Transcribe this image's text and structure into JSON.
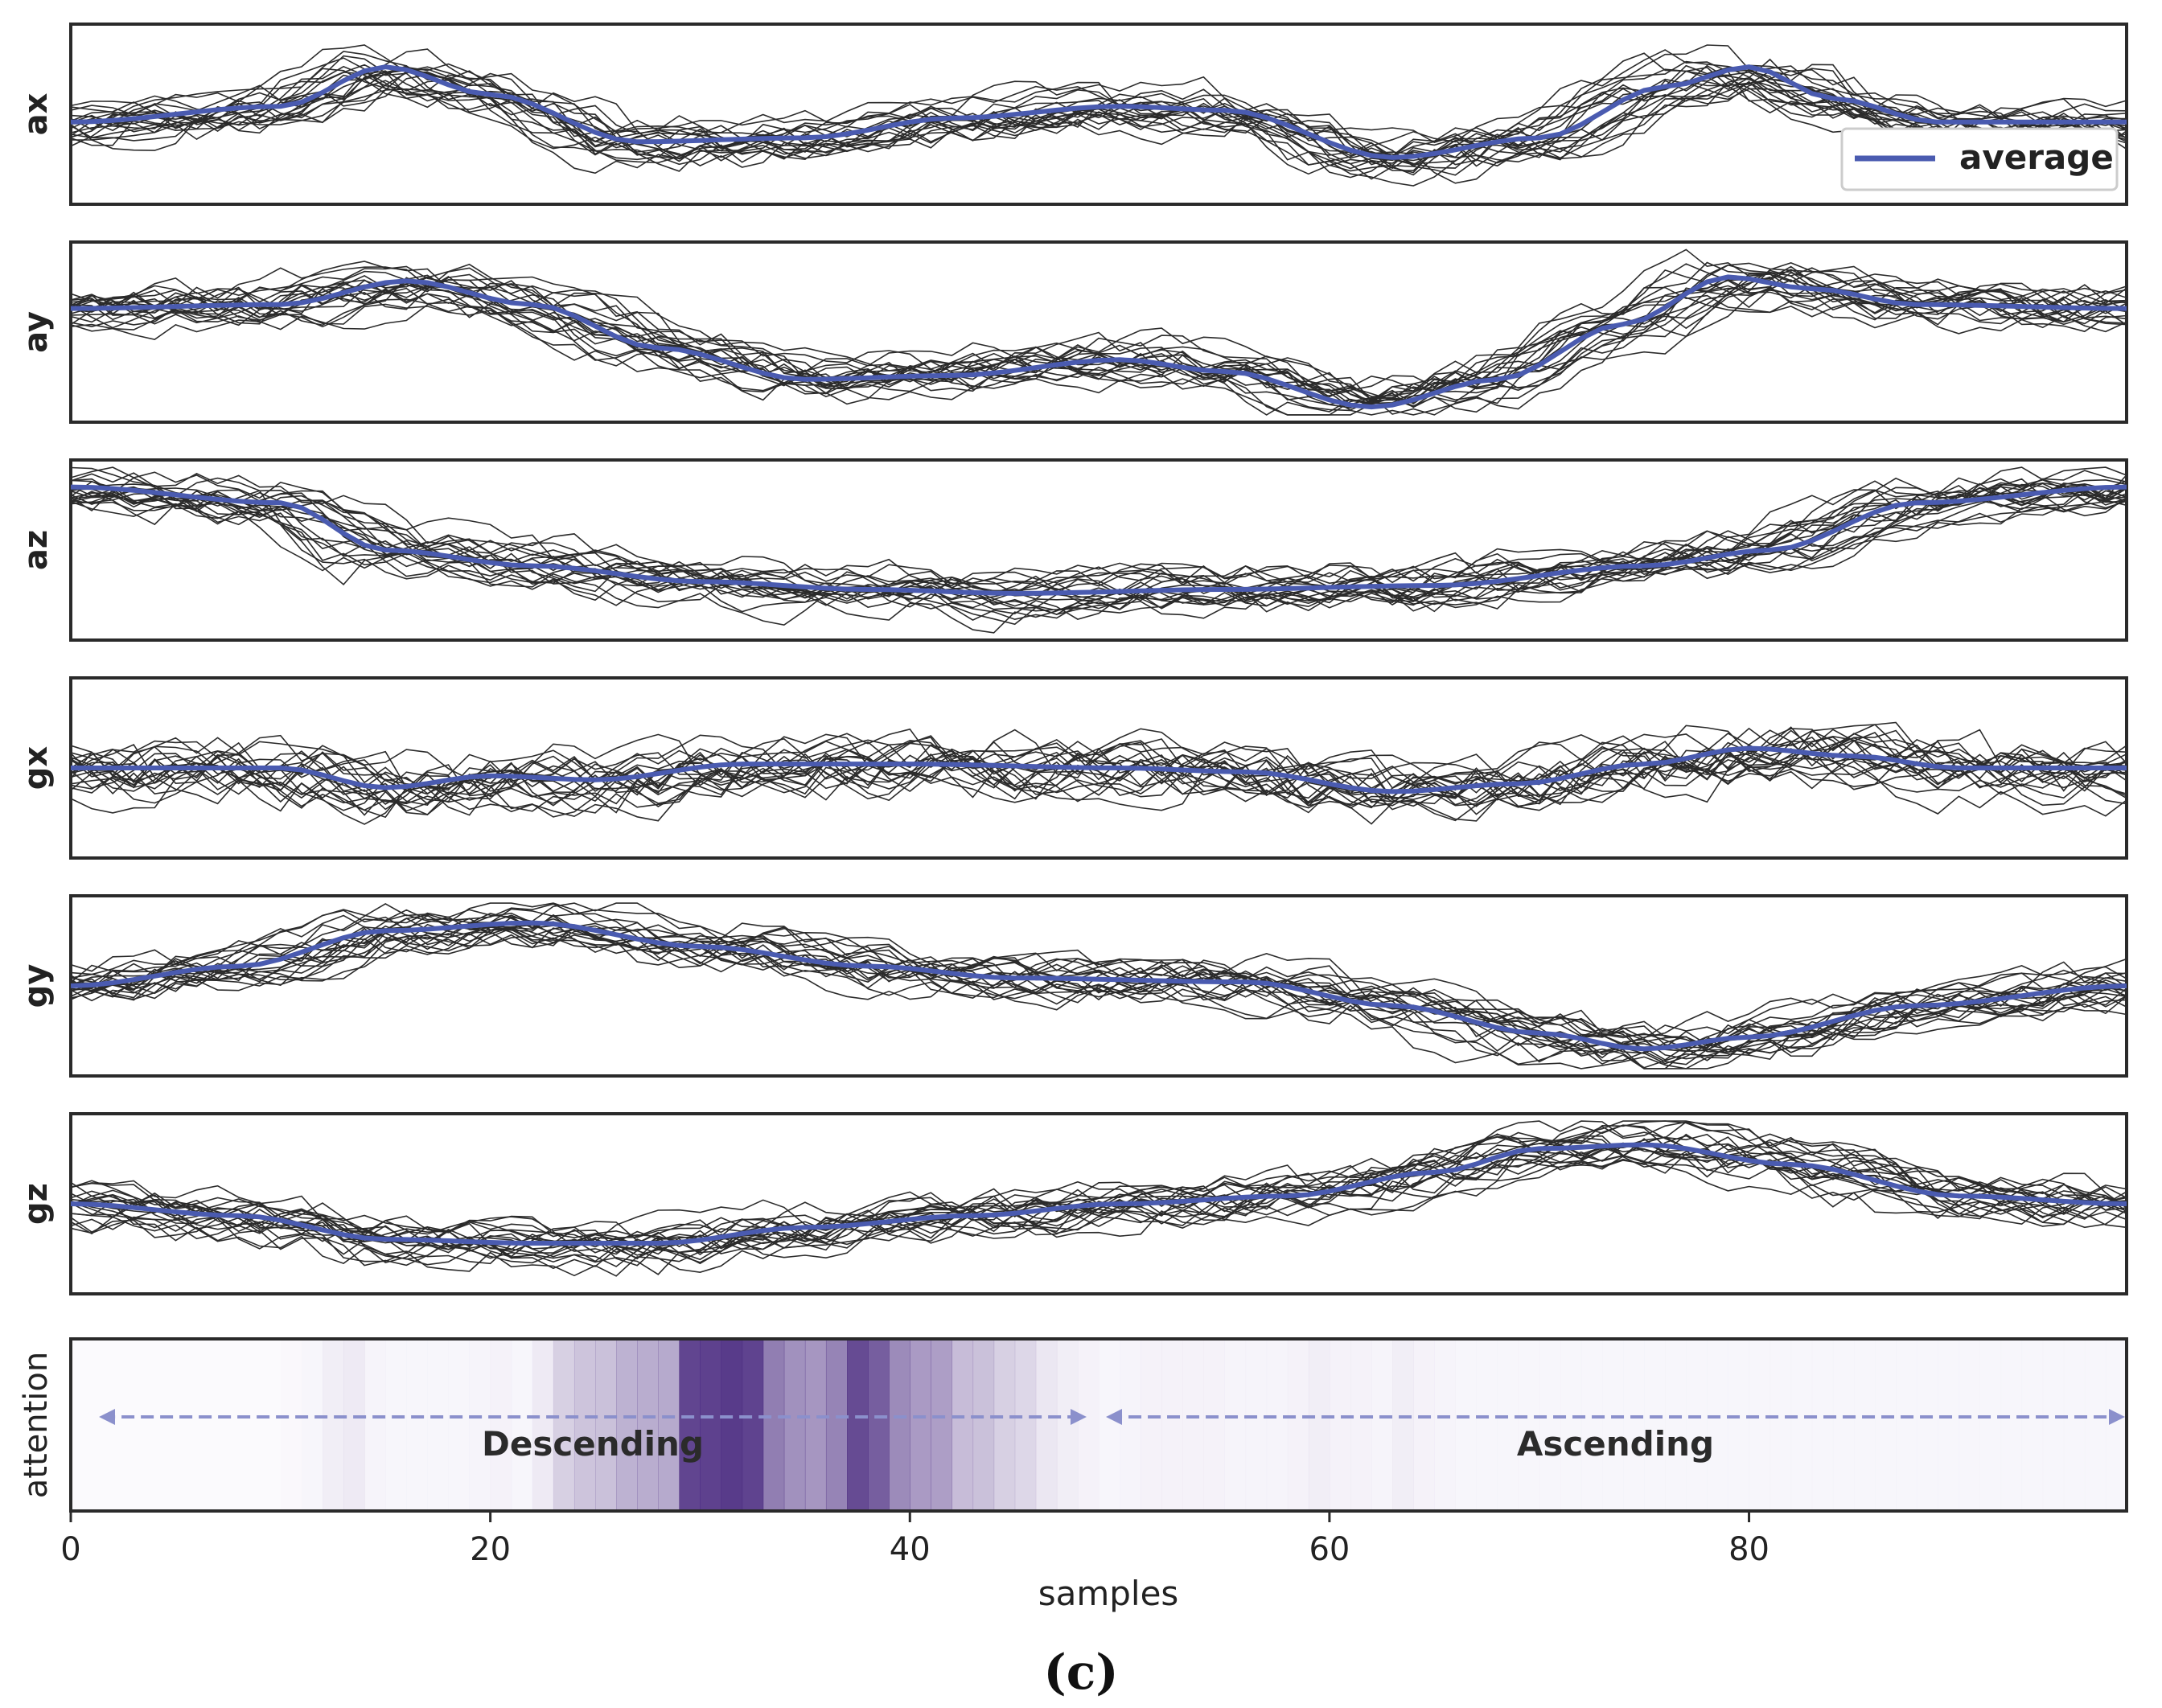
{
  "figure": {
    "caption": "(c)"
  },
  "chart_data": {
    "type": "line",
    "x_label": "samples",
    "x_range": [
      0,
      98
    ],
    "x_ticks": [
      0,
      20,
      40,
      60,
      80
    ],
    "y_range": [
      -1.0,
      1.0
    ],
    "legend": {
      "label": "average",
      "placement": "bottom-right of top panel",
      "color": "#4a5bb0"
    },
    "colors": {
      "traces": "#2b2b2b",
      "average": "#4a5bb0",
      "attention": "#4a2a80",
      "arrow": "#8b90cc"
    },
    "n_samples": 99,
    "n_traces": 20,
    "panels": [
      {
        "ylabel": "ax",
        "average_keypoints": [
          [
            0,
            -0.1
          ],
          [
            10,
            0.1
          ],
          [
            15,
            0.6
          ],
          [
            20,
            0.25
          ],
          [
            27,
            -0.35
          ],
          [
            35,
            -0.3
          ],
          [
            42,
            -0.05
          ],
          [
            50,
            0.1
          ],
          [
            55,
            0.05
          ],
          [
            63,
            -0.55
          ],
          [
            70,
            -0.3
          ],
          [
            76,
            0.35
          ],
          [
            80,
            0.6
          ],
          [
            84,
            0.2
          ],
          [
            89,
            -0.1
          ],
          [
            98,
            -0.1
          ]
        ]
      },
      {
        "ylabel": "ay",
        "average_keypoints": [
          [
            0,
            0.3
          ],
          [
            10,
            0.35
          ],
          [
            16,
            0.65
          ],
          [
            22,
            0.35
          ],
          [
            28,
            -0.2
          ],
          [
            35,
            -0.6
          ],
          [
            42,
            -0.55
          ],
          [
            50,
            -0.35
          ],
          [
            55,
            -0.5
          ],
          [
            62,
            -0.95
          ],
          [
            68,
            -0.6
          ],
          [
            74,
            0.1
          ],
          [
            79,
            0.7
          ],
          [
            83,
            0.55
          ],
          [
            88,
            0.35
          ],
          [
            98,
            0.3
          ]
        ]
      },
      {
        "ylabel": "az",
        "average_keypoints": [
          [
            0,
            0.8
          ],
          [
            10,
            0.6
          ],
          [
            15,
            0.0
          ],
          [
            22,
            -0.2
          ],
          [
            30,
            -0.4
          ],
          [
            38,
            -0.5
          ],
          [
            45,
            -0.55
          ],
          [
            55,
            -0.5
          ],
          [
            65,
            -0.45
          ],
          [
            75,
            -0.2
          ],
          [
            81,
            0.0
          ],
          [
            88,
            0.6
          ],
          [
            98,
            0.8
          ]
        ]
      },
      {
        "ylabel": "gx",
        "average_keypoints": [
          [
            0,
            0.0
          ],
          [
            10,
            0.0
          ],
          [
            15,
            -0.25
          ],
          [
            20,
            -0.1
          ],
          [
            25,
            -0.15
          ],
          [
            32,
            0.05
          ],
          [
            40,
            0.05
          ],
          [
            50,
            0.0
          ],
          [
            56,
            -0.05
          ],
          [
            63,
            -0.3
          ],
          [
            69,
            -0.2
          ],
          [
            75,
            0.05
          ],
          [
            80,
            0.25
          ],
          [
            85,
            0.15
          ],
          [
            90,
            0.0
          ],
          [
            98,
            0.0
          ]
        ]
      },
      {
        "ylabel": "gy",
        "average_keypoints": [
          [
            0,
            0.0
          ],
          [
            8,
            0.25
          ],
          [
            15,
            0.7
          ],
          [
            22,
            0.8
          ],
          [
            30,
            0.5
          ],
          [
            38,
            0.25
          ],
          [
            45,
            0.1
          ],
          [
            56,
            0.05
          ],
          [
            63,
            -0.25
          ],
          [
            70,
            -0.6
          ],
          [
            75,
            -0.8
          ],
          [
            80,
            -0.65
          ],
          [
            88,
            -0.25
          ],
          [
            98,
            0.0
          ]
        ]
      },
      {
        "ylabel": "gz",
        "average_keypoints": [
          [
            0,
            0.0
          ],
          [
            8,
            -0.15
          ],
          [
            15,
            -0.45
          ],
          [
            22,
            -0.5
          ],
          [
            28,
            -0.5
          ],
          [
            35,
            -0.3
          ],
          [
            43,
            -0.15
          ],
          [
            50,
            0.0
          ],
          [
            58,
            0.1
          ],
          [
            65,
            0.4
          ],
          [
            70,
            0.7
          ],
          [
            75,
            0.75
          ],
          [
            82,
            0.5
          ],
          [
            90,
            0.1
          ],
          [
            98,
            0.0
          ]
        ]
      }
    ],
    "attention": {
      "ylabel": "attention",
      "weights": [
        0,
        0,
        0,
        0,
        0,
        0,
        0,
        0,
        0,
        0,
        0.01,
        0.02,
        0.06,
        0.08,
        0.03,
        0.02,
        0.02,
        0.02,
        0.02,
        0.03,
        0.04,
        0.02,
        0.08,
        0.22,
        0.28,
        0.3,
        0.38,
        0.4,
        0.42,
        0.95,
        0.97,
        1.0,
        0.96,
        0.65,
        0.55,
        0.52,
        0.62,
        0.92,
        0.82,
        0.58,
        0.5,
        0.48,
        0.32,
        0.3,
        0.22,
        0.18,
        0.1,
        0.06,
        0.04,
        0.02,
        0.03,
        0.04,
        0.04,
        0.04,
        0.04,
        0.03,
        0.03,
        0.03,
        0.04,
        0.06,
        0.04,
        0.04,
        0.03,
        0.06,
        0.04,
        0.03,
        0.02,
        0.02,
        0.02,
        0.02,
        0.02,
        0.02,
        0.02,
        0.02,
        0.02,
        0.02,
        0.02,
        0.02,
        0.02,
        0.02,
        0.02,
        0.02,
        0.02,
        0.02,
        0.02,
        0.02,
        0.02,
        0.02,
        0.02,
        0.02,
        0.02,
        0.02,
        0.02,
        0.02,
        0.02,
        0.02,
        0.02,
        0.02
      ],
      "annotations": [
        {
          "label": "Descending",
          "x_start": 1.5,
          "x_end": 48.5
        },
        {
          "label": "Ascending",
          "x_start": 49.5,
          "x_end": 98
        }
      ]
    }
  }
}
